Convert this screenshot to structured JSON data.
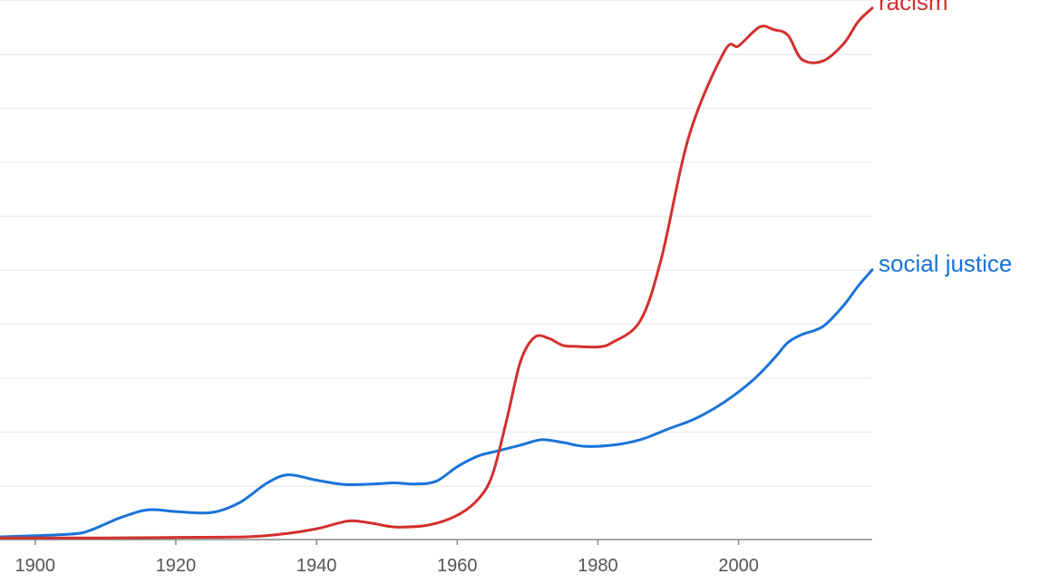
{
  "chart_data": {
    "type": "line",
    "title": "",
    "xlabel": "",
    "ylabel": "",
    "grid": true,
    "x_ticks": [
      "1900",
      "1920",
      "1940",
      "1960",
      "1980",
      "2000"
    ],
    "xlim": [
      1895,
      2019
    ],
    "ylim": [
      0,
      100
    ],
    "gridlines": [
      0,
      10,
      20,
      30,
      40,
      50,
      60,
      70,
      80,
      90,
      100
    ],
    "series": [
      {
        "name": "racism",
        "color": "#d2302f",
        "x": [
          1895,
          1910,
          1920,
          1930,
          1935,
          1940,
          1943,
          1945,
          1948,
          1950,
          1952,
          1956,
          1960,
          1963,
          1965,
          1967,
          1969,
          1971,
          1973,
          1975,
          1977,
          1980,
          1982,
          1986,
          1989,
          1993,
          1998,
          2000,
          2003,
          2005,
          2007,
          2009,
          2012,
          2015,
          2017,
          2019
        ],
        "values": [
          0.3,
          0.3,
          0.4,
          0.5,
          1.0,
          2.0,
          3.0,
          3.5,
          3.0,
          2.5,
          2.3,
          2.7,
          4.5,
          7.5,
          12.0,
          22.0,
          33.0,
          37.5,
          37.3,
          36.0,
          35.8,
          35.7,
          36.5,
          40.5,
          52.0,
          75.0,
          90.5,
          91.5,
          95.0,
          94.5,
          93.5,
          89.0,
          88.7,
          92.0,
          96.0,
          98.5
        ]
      },
      {
        "name": "social justice",
        "color": "#1a73d8",
        "x": [
          1895,
          1905,
          1908,
          1912,
          1916,
          1920,
          1925,
          1929,
          1933,
          1936,
          1940,
          1944,
          1948,
          1951,
          1954,
          1957,
          1960,
          1963,
          1966,
          1969,
          1972,
          1975,
          1978,
          1982,
          1986,
          1990,
          1994,
          1998,
          2002,
          2005,
          2007,
          2009,
          2012,
          2015,
          2017,
          2019
        ],
        "values": [
          0.5,
          1.0,
          1.8,
          4.0,
          5.5,
          5.2,
          5.0,
          6.8,
          10.5,
          12.0,
          11.0,
          10.2,
          10.3,
          10.5,
          10.3,
          10.8,
          13.5,
          15.5,
          16.5,
          17.5,
          18.5,
          18.0,
          17.3,
          17.5,
          18.5,
          20.5,
          22.5,
          25.5,
          29.5,
          33.5,
          36.5,
          38.0,
          39.5,
          43.5,
          47.0,
          50.0
        ]
      }
    ]
  }
}
